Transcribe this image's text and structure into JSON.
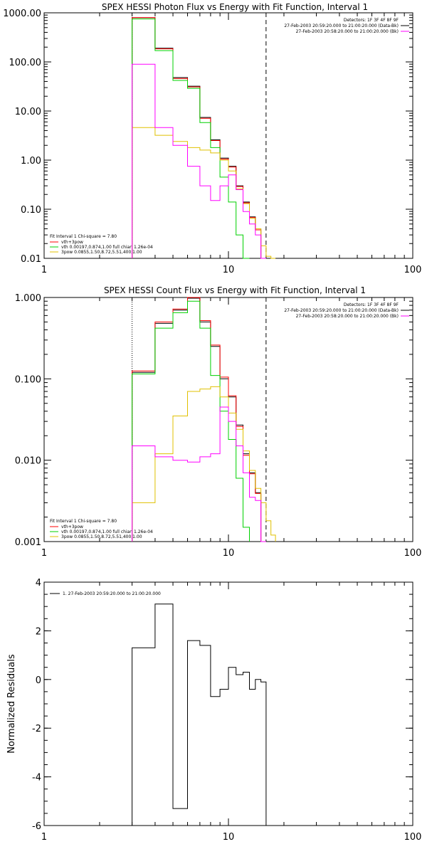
{
  "chart_data": [
    {
      "type": "line",
      "title": "SPEX HESSI Photon Flux vs Energy with Fit Function, Interval 1",
      "xlabel": "",
      "ylabel": "",
      "xscale": "log",
      "yscale": "log",
      "xlim": [
        1,
        100
      ],
      "ylim": [
        0.01,
        1000
      ],
      "xticks": [
        1,
        10,
        100
      ],
      "xtick_labels": [
        "1",
        "10",
        "100"
      ],
      "yticks": [
        0.01,
        0.1,
        1,
        10,
        100,
        1000
      ],
      "ytick_labels": [
        "0.01",
        "0.10",
        "1.00",
        "10.00",
        "100.00",
        "1000.00"
      ],
      "vlines": [
        {
          "x": 3.0,
          "style": "dotted"
        },
        {
          "x": 16.0,
          "style": "dashed"
        }
      ],
      "info_lines": [
        "Detectors: 1F 3F 4F 8F 9F",
        "27-Feb-2003 20:59:20.000 to 21:00:20.000 (Data-Bk)",
        "27-Feb-2003 20:58:20.000 to 21:00:20.000 (Bk)"
      ],
      "info_legend": [
        {
          "text": "27-Feb-2003 20:59:20.000 to 21:00:20.000 (Data-Bk)",
          "color": "#000000"
        },
        {
          "text": "27-Feb-2003 20:58:20.000 to 21:00:20.000 (Bk)",
          "color": "#ff00ff"
        }
      ],
      "fit_header": "Fit Interval 1   Chi-square = 7.80",
      "legend": [
        {
          "text": "vth+3pow",
          "color": "#ff0000"
        },
        {
          "text": "vth 0.00197,0.874,1.00  full chian 1.26e-04",
          "color": "#00d000"
        },
        {
          "text": "3pow 0.0855,1.50,8.72,5.51,400,1.00",
          "color": "#e0c000"
        }
      ],
      "bin_edges": [
        3,
        4,
        5,
        6,
        7,
        8,
        9,
        10,
        11,
        12,
        13,
        14,
        15,
        16,
        17,
        18,
        20
      ],
      "series": [
        {
          "color": "#000000",
          "values": [
            800,
            190,
            48,
            32,
            7.4,
            2.6,
            1.1,
            0.75,
            0.3,
            0.14,
            0.07,
            0.04,
            0.01
          ]
        },
        {
          "color": "#ff0000",
          "values": [
            800,
            185,
            46,
            31,
            7.1,
            2.5,
            1.05,
            0.72,
            0.29,
            0.135,
            0.068,
            0.038,
            0.01
          ]
        },
        {
          "color": "#00d000",
          "values": [
            750,
            170,
            42,
            29,
            5.8,
            1.8,
            0.45,
            0.14,
            0.03,
            0.007
          ]
        },
        {
          "color": "#e0c000",
          "values": [
            4.6,
            3.2,
            2.4,
            1.8,
            1.6,
            1.4,
            1.0,
            0.6,
            0.26,
            0.13,
            0.065,
            0.04,
            0.018,
            0.011,
            0.006
          ]
        },
        {
          "color": "#ff00ff",
          "values": [
            90,
            4.6,
            2.0,
            0.75,
            0.3,
            0.15,
            0.3,
            0.5,
            0.25,
            0.09,
            0.05,
            0.03,
            0.007
          ]
        }
      ]
    },
    {
      "type": "line",
      "title": "SPEX HESSI Count Flux vs Energy with Fit Function, Interval 1",
      "xlabel": "",
      "ylabel": "",
      "xscale": "log",
      "yscale": "log",
      "xlim": [
        1,
        100
      ],
      "ylim": [
        0.001,
        1
      ],
      "xticks": [
        1,
        10,
        100
      ],
      "xtick_labels": [
        "1",
        "10",
        "100"
      ],
      "yticks": [
        0.001,
        0.01,
        0.1,
        1
      ],
      "ytick_labels": [
        "0.001",
        "0.010",
        "0.100",
        "1.000"
      ],
      "vlines": [
        {
          "x": 3.0,
          "style": "dotted"
        },
        {
          "x": 16.0,
          "style": "dashed"
        }
      ],
      "info_lines": [
        "Detectors: 1F 3F 4F 8F 9F",
        "27-Feb-2003 20:59:20.000 to 21:00:20.000 (Data-Bk)",
        "27-Feb-2003 20:58:20.000 to 21:00:20.000 (Bk)"
      ],
      "info_legend": [
        {
          "text": "27-Feb-2003 20:59:20.000 to 21:00:20.000 (Data-Bk)",
          "color": "#000000"
        },
        {
          "text": "27-Feb-2003 20:58:20.000 to 21:00:20.000 (Bk)",
          "color": "#ff00ff"
        }
      ],
      "fit_header": "Fit Interval 1   Chi-square = 7.80",
      "legend": [
        {
          "text": "vth+3pow",
          "color": "#ff0000"
        },
        {
          "text": "vth 0.00197,0.874,1.00  full chian 1.26e-04",
          "color": "#00d000"
        },
        {
          "text": "3pow 0.0855,1.50,8.72,5.51,400,1.00",
          "color": "#e0c000"
        }
      ],
      "bin_edges": [
        3,
        4,
        5,
        6,
        7,
        8,
        9,
        10,
        11,
        12,
        13,
        14,
        15,
        16,
        17,
        18,
        20
      ],
      "series": [
        {
          "color": "#000000",
          "values": [
            0.12,
            0.48,
            0.7,
            0.98,
            0.5,
            0.25,
            0.1,
            0.06,
            0.027,
            0.012,
            0.007,
            0.004,
            0.001
          ]
        },
        {
          "color": "#ff0000",
          "values": [
            0.125,
            0.5,
            0.72,
            1.0,
            0.52,
            0.26,
            0.105,
            0.062,
            0.026,
            0.0115,
            0.0068,
            0.0039,
            0.001
          ]
        },
        {
          "color": "#00d000",
          "values": [
            0.115,
            0.42,
            0.65,
            0.9,
            0.42,
            0.11,
            0.04,
            0.018,
            0.006,
            0.0015
          ]
        },
        {
          "color": "#e0c000",
          "values": [
            0.003,
            0.012,
            0.035,
            0.07,
            0.075,
            0.08,
            0.06,
            0.038,
            0.024,
            0.013,
            0.0075,
            0.0045,
            0.003,
            0.0018,
            0.0012
          ]
        },
        {
          "color": "#ff00ff",
          "values": [
            0.015,
            0.011,
            0.01,
            0.0095,
            0.011,
            0.012,
            0.045,
            0.03,
            0.015,
            0.007,
            0.0035,
            0.0032,
            0.001
          ]
        }
      ]
    },
    {
      "type": "line",
      "title": "",
      "xlabel": "",
      "ylabel": "Normalized Residuals",
      "xscale": "log",
      "yscale": "linear",
      "xlim": [
        1,
        100
      ],
      "ylim": [
        -6,
        4
      ],
      "xticks": [
        1,
        10,
        100
      ],
      "xtick_labels": [
        "1",
        "10",
        "100"
      ],
      "yticks": [
        -6,
        -4,
        -2,
        0,
        2,
        4
      ],
      "ytick_labels": [
        "-6",
        "-4",
        "-2",
        "0",
        "2",
        "4"
      ],
      "legend": [
        {
          "text": "1. 27-Feb-2003 20:59:20.000 to 21:00:20.000",
          "color": "#000000"
        }
      ],
      "bin_edges": [
        3,
        4,
        5,
        6,
        7,
        8,
        9,
        10,
        11,
        12,
        13,
        14,
        15,
        16
      ],
      "series": [
        {
          "color": "#000000",
          "values": [
            1.3,
            3.1,
            -5.3,
            1.6,
            1.4,
            -0.7,
            -0.4,
            0.5,
            0.2,
            0.3,
            -0.4,
            0.0,
            -0.1
          ]
        }
      ]
    }
  ]
}
